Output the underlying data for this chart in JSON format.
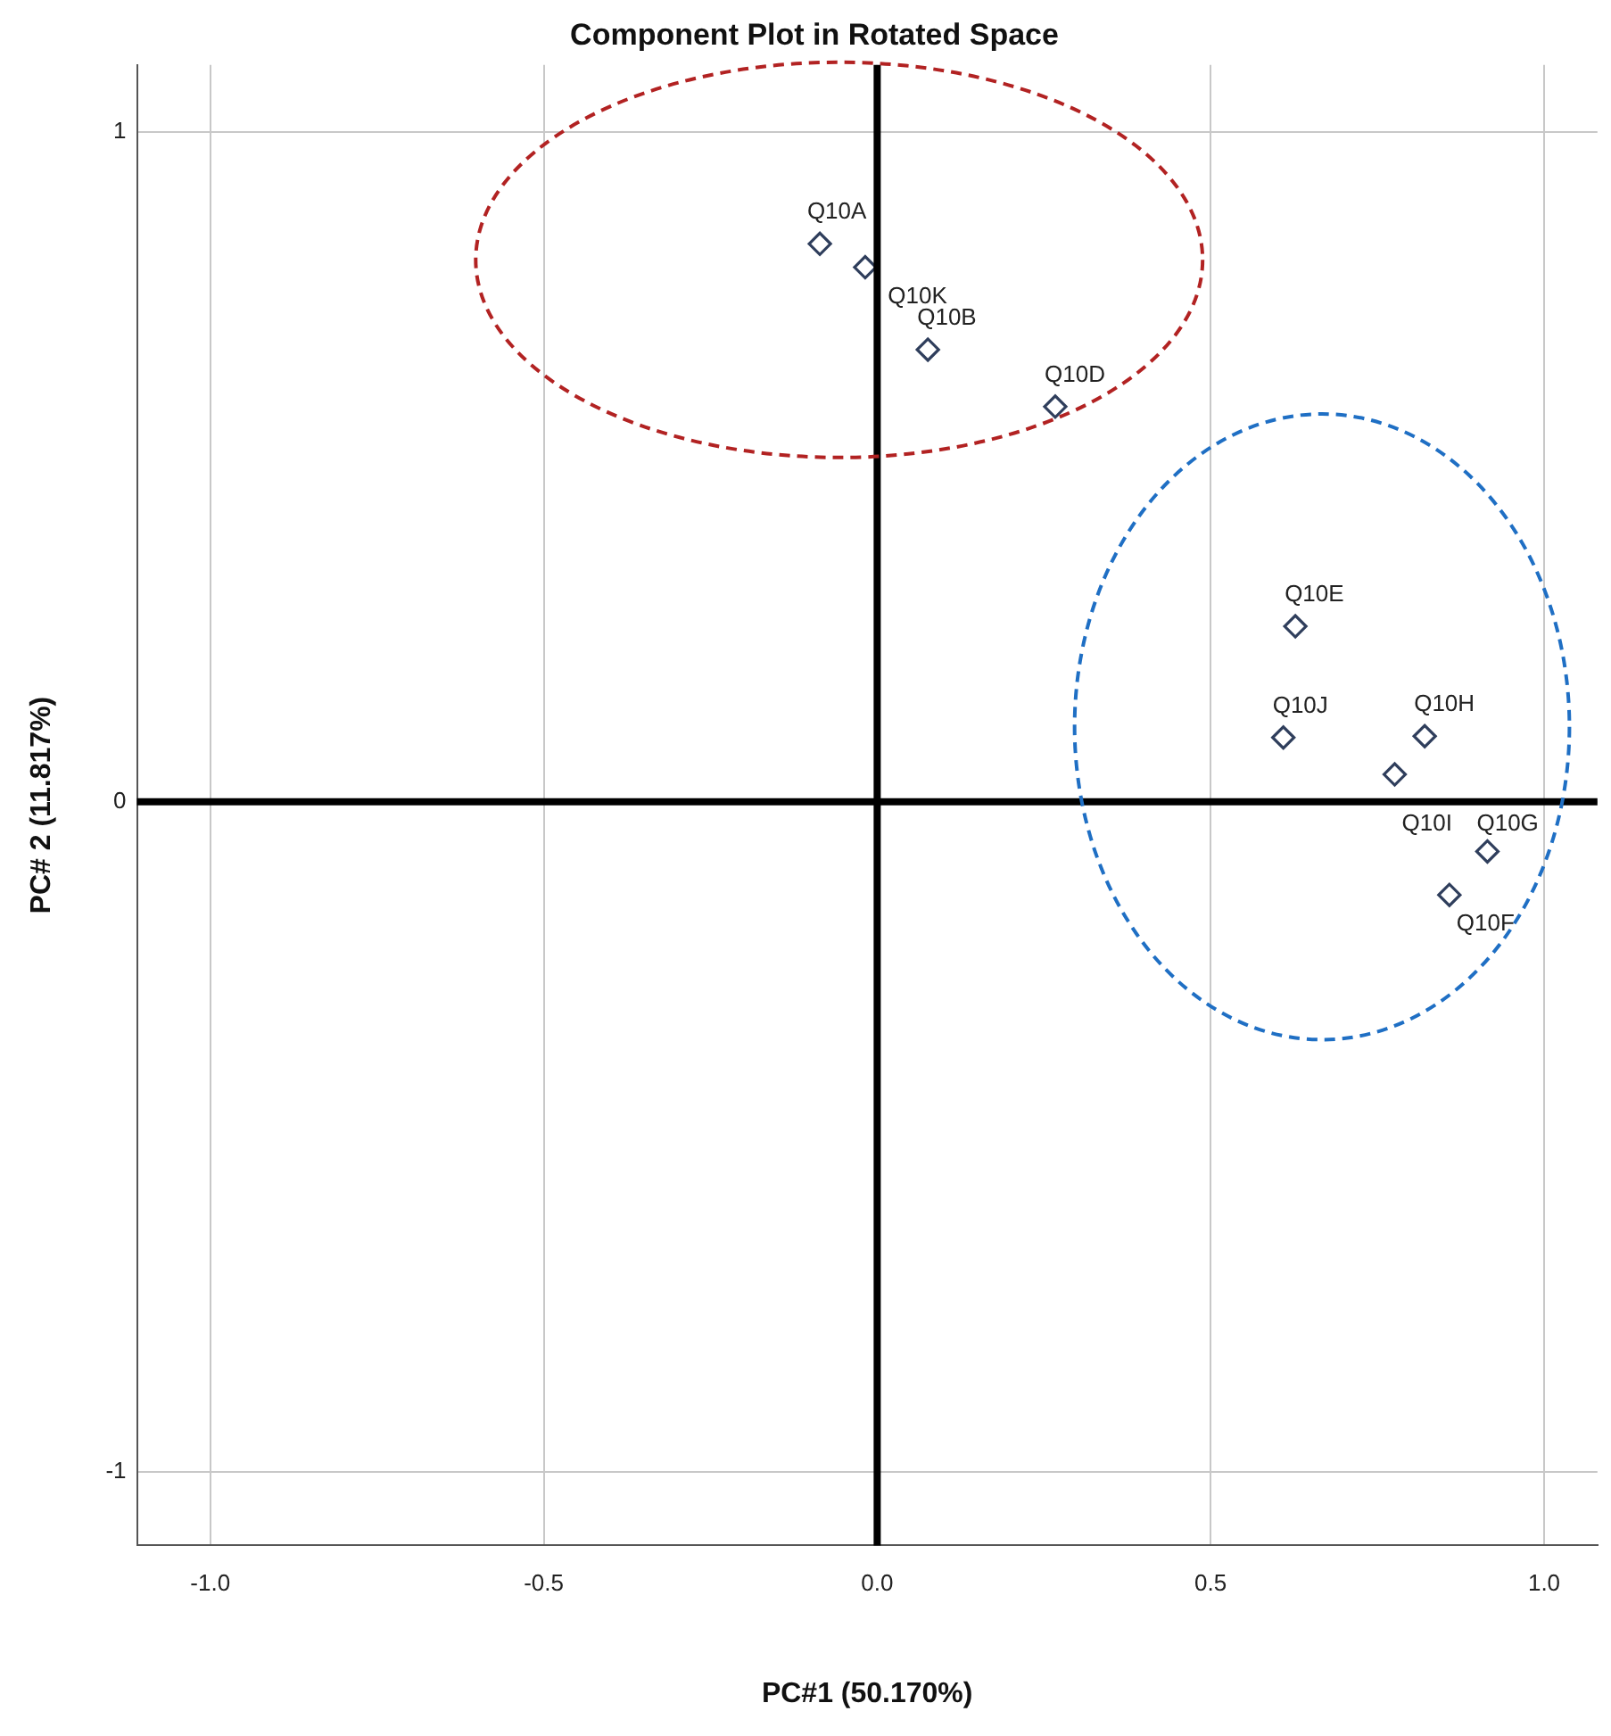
{
  "chart_data": {
    "type": "scatter",
    "title": "Component Plot in Rotated Space",
    "xlabel": "PC#1 (50.170%)",
    "ylabel": "PC# 2 (11.817%)",
    "series": [
      {
        "color": "#2f3e5c",
        "x": [
          -0.086,
          -0.018,
          0.076,
          0.267,
          0.627,
          0.609,
          0.821,
          0.776,
          0.915,
          0.858
        ],
        "values": [
          0.833,
          0.798,
          0.675,
          0.59,
          0.262,
          0.096,
          0.098,
          0.041,
          -0.074,
          -0.139
        ],
        "value_labels": [
          "Q10A",
          "Q10K",
          "Q10B",
          "Q10D",
          "Q10E",
          "Q10J",
          "Q10H",
          "Q10I",
          "Q10G",
          "Q10F"
        ]
      }
    ],
    "xlim": [
      -1.11,
      1.08
    ],
    "ylim": [
      -1.11,
      1.1
    ],
    "xticks": [
      {
        "value": -1,
        "label": "-1.0"
      },
      {
        "value": -0.5,
        "label": "-0.5"
      },
      {
        "value": 0,
        "label": "0.0"
      },
      {
        "value": 0.5,
        "label": "0.5"
      },
      {
        "value": 1,
        "label": "1.0"
      }
    ],
    "yticks": [
      -1,
      0,
      1
    ],
    "grid": true,
    "legend": false,
    "marker": "diamond"
  }
}
